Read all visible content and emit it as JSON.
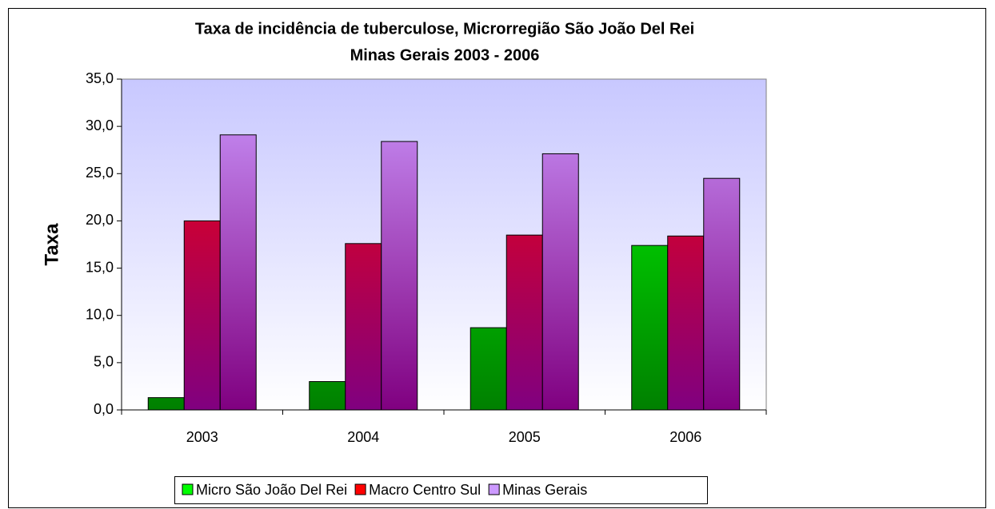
{
  "chart_data": {
    "type": "bar",
    "title": [
      "Taxa de incidência  de tuberculose, Microrregião São João Del Rei",
      "Minas Gerais 2003 - 2006"
    ],
    "y_label": "Taxa",
    "categories": [
      "2003",
      "2004",
      "2005",
      "2006"
    ],
    "series": [
      {
        "name": "Micro São João Del Rei",
        "color": "#00ff00",
        "gradient_end": "#008000",
        "values": [
          1.3,
          3.0,
          8.7,
          17.4
        ]
      },
      {
        "name": "Macro Centro Sul",
        "color": "#ff0000",
        "gradient_end": "#800080",
        "values": [
          20.0,
          17.6,
          18.5,
          18.4
        ]
      },
      {
        "name": "Minas Gerais",
        "color": "#cc99ff",
        "gradient_end": "#800080",
        "values": [
          29.1,
          28.4,
          27.1,
          24.5
        ]
      }
    ],
    "ylim": [
      0,
      35
    ],
    "yticks": [
      {
        "value": 0,
        "label": "0,0"
      },
      {
        "value": 5,
        "label": "5,0"
      },
      {
        "value": 10,
        "label": "10,0"
      },
      {
        "value": 15,
        "label": "15,0"
      },
      {
        "value": 20,
        "label": "20,0"
      },
      {
        "value": 25,
        "label": "25,0"
      },
      {
        "value": 30,
        "label": "30,0"
      },
      {
        "value": 35,
        "label": "35,0"
      }
    ],
    "legend": "bottom"
  }
}
